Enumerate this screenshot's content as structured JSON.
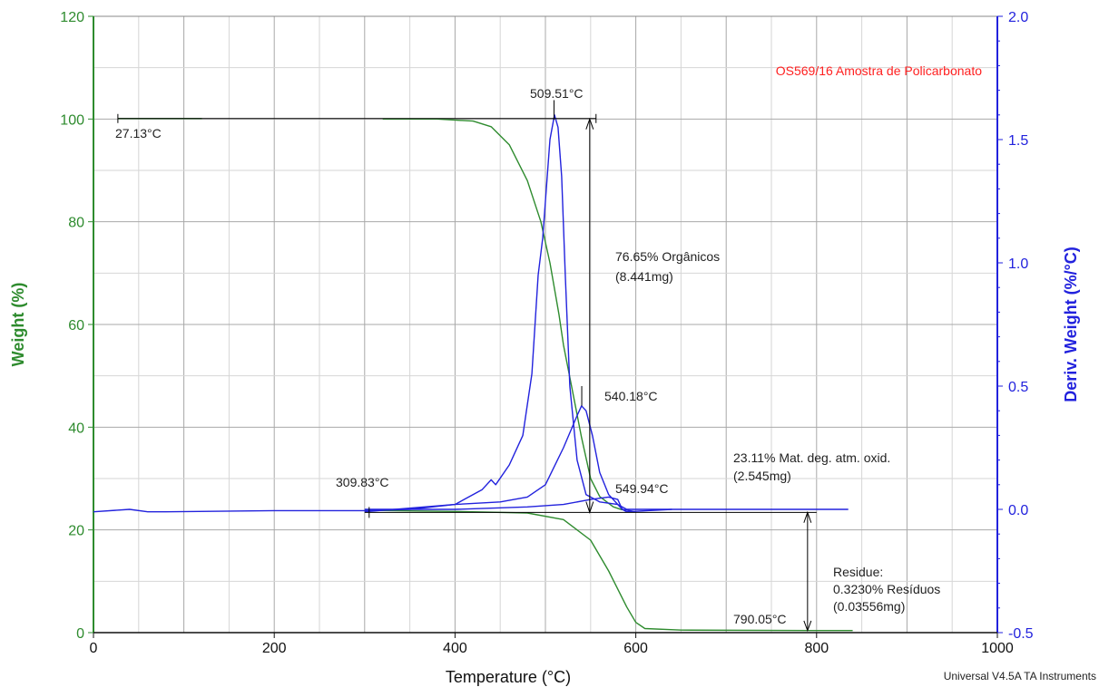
{
  "chart_data": {
    "type": "line",
    "title": "OS569/16 Amostra de Policarbonato",
    "xlabel": "Temperature (°C)",
    "ylabel": "Weight (%)",
    "y2label": "Deriv. Weight (%/°C)",
    "footer": "Universal V4.5A TA Instruments",
    "xlim": [
      0,
      1000
    ],
    "ylim": [
      0,
      120
    ],
    "y2lim": [
      -0.5,
      2.0
    ],
    "grid": true,
    "x_ticks": [
      "0",
      "200",
      "400",
      "600",
      "800",
      "1000"
    ],
    "y_ticks": [
      "0",
      "20",
      "40",
      "60",
      "80",
      "100",
      "120"
    ],
    "y2_ticks": [
      "-0.5",
      "0.0",
      "0.5",
      "1.0",
      "1.5",
      "2.0"
    ],
    "colors": {
      "weight": "#2e8b2e",
      "deriv": "#2222dd",
      "title": "#ff2020",
      "annotation_line": "#000000"
    },
    "series": [
      {
        "axis": "left",
        "color": "#2e8b2e",
        "points": [
          [
            27,
            100.1
          ],
          [
            120,
            100.1
          ]
        ]
      },
      {
        "axis": "left",
        "color": "#2e8b2e",
        "points": [
          [
            320,
            100
          ],
          [
            380,
            100
          ],
          [
            420,
            99.6
          ],
          [
            440,
            98.5
          ],
          [
            460,
            95
          ],
          [
            480,
            88
          ],
          [
            495,
            80
          ],
          [
            505,
            72
          ],
          [
            515,
            62
          ],
          [
            520,
            56
          ],
          [
            530,
            47
          ],
          [
            540,
            38
          ],
          [
            550,
            30
          ],
          [
            560,
            26.5
          ],
          [
            575,
            24.5
          ],
          [
            585,
            23.9
          ]
        ]
      },
      {
        "axis": "left",
        "color": "#2e8b2e",
        "points": [
          [
            300,
            23.8
          ],
          [
            400,
            23.6
          ],
          [
            480,
            23.3
          ],
          [
            520,
            22
          ],
          [
            550,
            18
          ],
          [
            570,
            12
          ],
          [
            590,
            5
          ],
          [
            600,
            2
          ],
          [
            610,
            0.8
          ],
          [
            650,
            0.5
          ],
          [
            790,
            0.4
          ],
          [
            840,
            0.4
          ]
        ]
      },
      {
        "axis": "right",
        "color": "#2222dd",
        "points": [
          [
            0,
            -0.01
          ],
          [
            40,
            0.0
          ],
          [
            60,
            -0.01
          ],
          [
            80,
            -0.01
          ],
          [
            200,
            -0.005
          ],
          [
            300,
            -0.005
          ],
          [
            350,
            0.0
          ],
          [
            400,
            0.02
          ],
          [
            430,
            0.08
          ],
          [
            440,
            0.12
          ],
          [
            445,
            0.1
          ],
          [
            460,
            0.18
          ],
          [
            475,
            0.3
          ],
          [
            485,
            0.55
          ],
          [
            492,
            0.95
          ],
          [
            497,
            1.1
          ],
          [
            505,
            1.5
          ],
          [
            510,
            1.6
          ],
          [
            514,
            1.55
          ],
          [
            518,
            1.35
          ],
          [
            522,
            0.95
          ],
          [
            527,
            0.5
          ],
          [
            535,
            0.2
          ],
          [
            545,
            0.06
          ],
          [
            560,
            0.03
          ],
          [
            580,
            0.02
          ],
          [
            590,
            0.0
          ],
          [
            640,
            0.0
          ]
        ]
      },
      {
        "axis": "right",
        "color": "#2222dd",
        "points": [
          [
            300,
            -0.01
          ],
          [
            400,
            0.02
          ],
          [
            450,
            0.03
          ],
          [
            480,
            0.05
          ],
          [
            500,
            0.1
          ],
          [
            520,
            0.25
          ],
          [
            535,
            0.38
          ],
          [
            540,
            0.42
          ],
          [
            545,
            0.4
          ],
          [
            552,
            0.3
          ],
          [
            560,
            0.15
          ],
          [
            570,
            0.06
          ],
          [
            585,
            0.0
          ],
          [
            600,
            -0.01
          ]
        ]
      },
      {
        "axis": "right",
        "color": "#2222dd",
        "points": [
          [
            300,
            0.0
          ],
          [
            400,
            0.0
          ],
          [
            480,
            0.01
          ],
          [
            520,
            0.02
          ],
          [
            550,
            0.04
          ],
          [
            570,
            0.05
          ],
          [
            580,
            0.04
          ],
          [
            585,
            0.0
          ],
          [
            590,
            -0.01
          ],
          [
            640,
            0.0
          ],
          [
            835,
            0.0
          ]
        ]
      }
    ],
    "annotations": [
      {
        "text": "27.13°C"
      },
      {
        "text": "509.51°C"
      },
      {
        "text": "76.65% Orgânicos"
      },
      {
        "text": "(8.441mg)"
      },
      {
        "text": "540.18°C"
      },
      {
        "text": "309.83°C"
      },
      {
        "text": "549.94°C"
      },
      {
        "text": "23.11% Mat. deg. atm. oxid."
      },
      {
        "text": "(2.545mg)"
      },
      {
        "text": "Residue:"
      },
      {
        "text": "0.3230% Resíduos"
      },
      {
        "text": "(0.03556mg)"
      },
      {
        "text": "790.05°C"
      }
    ]
  }
}
